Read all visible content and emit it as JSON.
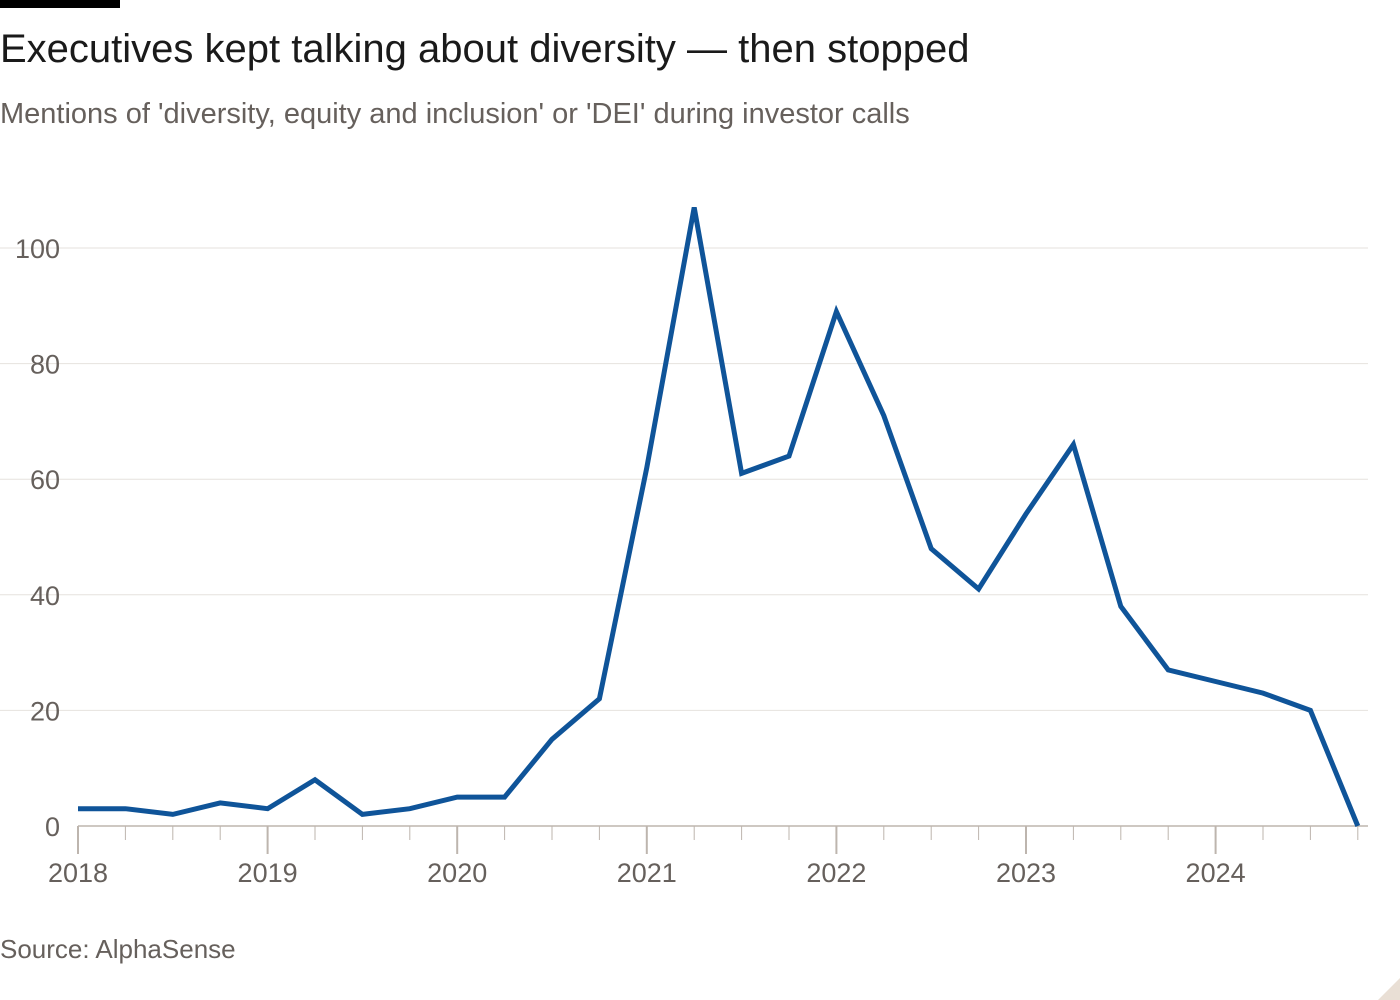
{
  "header": {
    "title": "Executives kept talking about diversity — then stopped",
    "subtitle": "Mentions of 'diversity, equity and inclusion' or 'DEI' during investor calls"
  },
  "footer": {
    "source": "Source: AlphaSense"
  },
  "colors": {
    "line": "#0f5499",
    "grid": "#e6e2de",
    "axis": "#bdb5ae",
    "text": "#66605c"
  },
  "chart_data": {
    "type": "line",
    "title": "Executives kept talking about diversity — then stopped",
    "subtitle": "Mentions of 'diversity, equity and inclusion' or 'DEI' during investor calls",
    "xlabel": "",
    "ylabel": "",
    "ylim": [
      0,
      110
    ],
    "xlim": [
      "2018-Q1",
      "2024-Q4"
    ],
    "grid": true,
    "legend": "none",
    "y_ticks": [
      0,
      20,
      40,
      60,
      80,
      100
    ],
    "x_tick_labels": [
      "2018",
      "2019",
      "2020",
      "2021",
      "2022",
      "2023",
      "2024"
    ],
    "x": [
      "2018-Q1",
      "2018-Q2",
      "2018-Q3",
      "2018-Q4",
      "2019-Q1",
      "2019-Q2",
      "2019-Q3",
      "2019-Q4",
      "2020-Q1",
      "2020-Q2",
      "2020-Q3",
      "2020-Q4",
      "2021-Q1",
      "2021-Q2",
      "2021-Q3",
      "2021-Q4",
      "2022-Q1",
      "2022-Q2",
      "2022-Q3",
      "2022-Q4",
      "2023-Q1",
      "2023-Q2",
      "2023-Q3",
      "2023-Q4",
      "2024-Q1",
      "2024-Q2",
      "2024-Q3",
      "2024-Q4"
    ],
    "series": [
      {
        "values": [
          3,
          3,
          2,
          4,
          3,
          8,
          2,
          3,
          5,
          5,
          15,
          22,
          62,
          107,
          61,
          64,
          89,
          71,
          48,
          41,
          54,
          66,
          38,
          27,
          25,
          23,
          20,
          0
        ]
      }
    ]
  }
}
